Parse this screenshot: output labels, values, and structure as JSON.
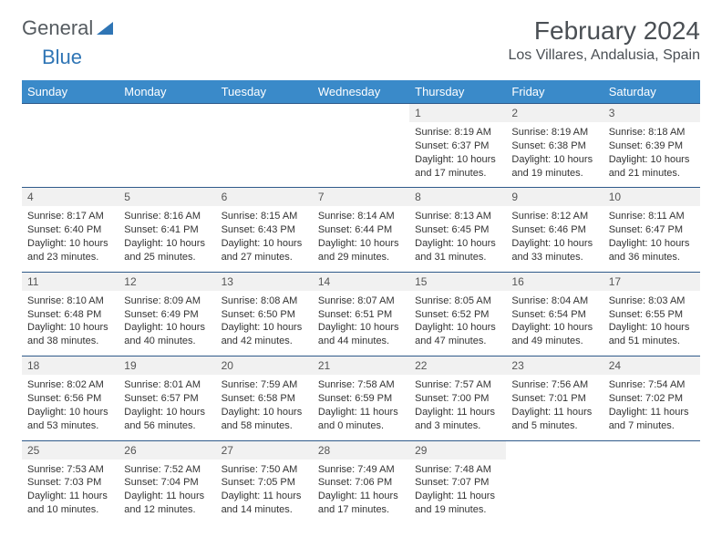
{
  "logo": {
    "text1": "General",
    "text2": "Blue"
  },
  "title": "February 2024",
  "location": "Los Villares, Andalusia, Spain",
  "colors": {
    "header_bg": "#3a8ac9",
    "header_text": "#ffffff",
    "daynum_bg": "#f1f1f1",
    "border": "#2f5a8a",
    "logo_gray": "#555b60",
    "logo_blue": "#2f75b5",
    "title_color": "#4a4f54"
  },
  "weekdays": [
    "Sunday",
    "Monday",
    "Tuesday",
    "Wednesday",
    "Thursday",
    "Friday",
    "Saturday"
  ],
  "weeks": [
    [
      null,
      null,
      null,
      null,
      {
        "n": "1",
        "sr": "8:19 AM",
        "ss": "6:37 PM",
        "dl": "10 hours and 17 minutes."
      },
      {
        "n": "2",
        "sr": "8:19 AM",
        "ss": "6:38 PM",
        "dl": "10 hours and 19 minutes."
      },
      {
        "n": "3",
        "sr": "8:18 AM",
        "ss": "6:39 PM",
        "dl": "10 hours and 21 minutes."
      }
    ],
    [
      {
        "n": "4",
        "sr": "8:17 AM",
        "ss": "6:40 PM",
        "dl": "10 hours and 23 minutes."
      },
      {
        "n": "5",
        "sr": "8:16 AM",
        "ss": "6:41 PM",
        "dl": "10 hours and 25 minutes."
      },
      {
        "n": "6",
        "sr": "8:15 AM",
        "ss": "6:43 PM",
        "dl": "10 hours and 27 minutes."
      },
      {
        "n": "7",
        "sr": "8:14 AM",
        "ss": "6:44 PM",
        "dl": "10 hours and 29 minutes."
      },
      {
        "n": "8",
        "sr": "8:13 AM",
        "ss": "6:45 PM",
        "dl": "10 hours and 31 minutes."
      },
      {
        "n": "9",
        "sr": "8:12 AM",
        "ss": "6:46 PM",
        "dl": "10 hours and 33 minutes."
      },
      {
        "n": "10",
        "sr": "8:11 AM",
        "ss": "6:47 PM",
        "dl": "10 hours and 36 minutes."
      }
    ],
    [
      {
        "n": "11",
        "sr": "8:10 AM",
        "ss": "6:48 PM",
        "dl": "10 hours and 38 minutes."
      },
      {
        "n": "12",
        "sr": "8:09 AM",
        "ss": "6:49 PM",
        "dl": "10 hours and 40 minutes."
      },
      {
        "n": "13",
        "sr": "8:08 AM",
        "ss": "6:50 PM",
        "dl": "10 hours and 42 minutes."
      },
      {
        "n": "14",
        "sr": "8:07 AM",
        "ss": "6:51 PM",
        "dl": "10 hours and 44 minutes."
      },
      {
        "n": "15",
        "sr": "8:05 AM",
        "ss": "6:52 PM",
        "dl": "10 hours and 47 minutes."
      },
      {
        "n": "16",
        "sr": "8:04 AM",
        "ss": "6:54 PM",
        "dl": "10 hours and 49 minutes."
      },
      {
        "n": "17",
        "sr": "8:03 AM",
        "ss": "6:55 PM",
        "dl": "10 hours and 51 minutes."
      }
    ],
    [
      {
        "n": "18",
        "sr": "8:02 AM",
        "ss": "6:56 PM",
        "dl": "10 hours and 53 minutes."
      },
      {
        "n": "19",
        "sr": "8:01 AM",
        "ss": "6:57 PM",
        "dl": "10 hours and 56 minutes."
      },
      {
        "n": "20",
        "sr": "7:59 AM",
        "ss": "6:58 PM",
        "dl": "10 hours and 58 minutes."
      },
      {
        "n": "21",
        "sr": "7:58 AM",
        "ss": "6:59 PM",
        "dl": "11 hours and 0 minutes."
      },
      {
        "n": "22",
        "sr": "7:57 AM",
        "ss": "7:00 PM",
        "dl": "11 hours and 3 minutes."
      },
      {
        "n": "23",
        "sr": "7:56 AM",
        "ss": "7:01 PM",
        "dl": "11 hours and 5 minutes."
      },
      {
        "n": "24",
        "sr": "7:54 AM",
        "ss": "7:02 PM",
        "dl": "11 hours and 7 minutes."
      }
    ],
    [
      {
        "n": "25",
        "sr": "7:53 AM",
        "ss": "7:03 PM",
        "dl": "11 hours and 10 minutes."
      },
      {
        "n": "26",
        "sr": "7:52 AM",
        "ss": "7:04 PM",
        "dl": "11 hours and 12 minutes."
      },
      {
        "n": "27",
        "sr": "7:50 AM",
        "ss": "7:05 PM",
        "dl": "11 hours and 14 minutes."
      },
      {
        "n": "28",
        "sr": "7:49 AM",
        "ss": "7:06 PM",
        "dl": "11 hours and 17 minutes."
      },
      {
        "n": "29",
        "sr": "7:48 AM",
        "ss": "7:07 PM",
        "dl": "11 hours and 19 minutes."
      },
      null,
      null
    ]
  ],
  "labels": {
    "sunrise": "Sunrise:",
    "sunset": "Sunset:",
    "daylight": "Daylight:"
  }
}
